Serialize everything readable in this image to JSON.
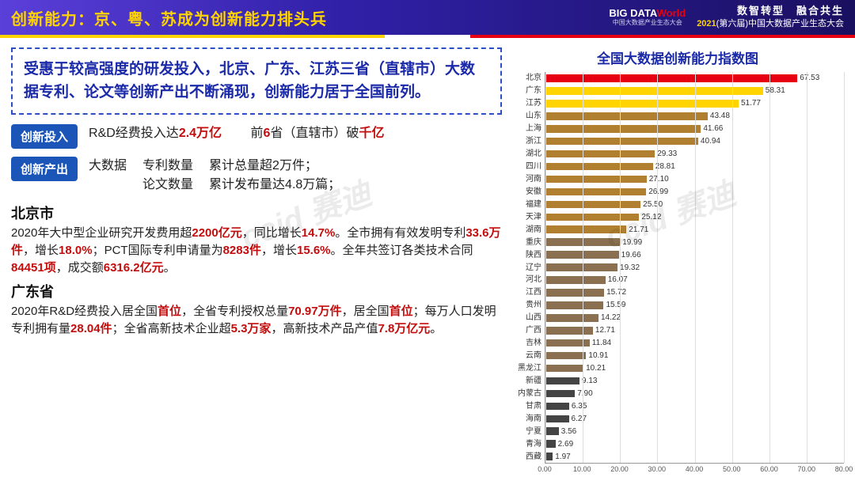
{
  "header": {
    "title": "创新能力：京、粤、苏成为创新能力排头兵",
    "logo_big": "BIG DATA",
    "logo_world": "World",
    "logo_sub": "中国大数据产业生态大会",
    "event_l1": "数智转型　融合共生",
    "event_year": "2021",
    "event_rest": "(第六届)中国大数据产业生态大会"
  },
  "summary": "受惠于较高强度的研发投入，北京、广东、江苏三省（直辖市）大数据专利、论文等创新产出不断涌现，创新能力居于全国前列。",
  "badge1": {
    "label": "创新投入",
    "t1a": "R&D经费投入达",
    "t1b": "2.4万亿",
    "t2a": "　　前",
    "t2b": "6",
    "t2c": "省（直辖市）破",
    "t2d": "千亿"
  },
  "badge2": {
    "label": "创新产出",
    "pre": "大数据",
    "r1l": "专利数量",
    "r1r": "累计总量超2万件；",
    "r2l": "论文数量",
    "r2r": "累计发布量达4.8万篇；"
  },
  "cities": [
    {
      "name": "北京市",
      "parts": [
        "2020年大中型企业研究开发费用超",
        "2200亿元",
        "，同比增长",
        "14.7%",
        "。全市拥有有效发明专利",
        "33.6万件",
        "，增长",
        "18.0%",
        "；PCT国际专利申请量为",
        "8283件",
        "，增长",
        "15.6%",
        "。全年共签订各类技术合同",
        "84451项",
        "，成交额",
        "6316.2亿元",
        "。"
      ]
    },
    {
      "name": "广东省",
      "parts": [
        "2020年R&D经费投入居全国",
        "首位",
        "，全省专利授权总量",
        "70.97万件",
        "，居全国",
        "首位",
        "；每万人口发明专利拥有量",
        "28.04件",
        "；全省高新技术企业超",
        "5.3万家",
        "，高新技术产品产值",
        "7.8万亿元",
        "。"
      ]
    }
  ],
  "chart": {
    "title": "全国大数据创新能力指数图",
    "xmax": 80,
    "xticks": [
      0,
      10,
      20,
      30,
      40,
      50,
      60,
      70,
      80
    ],
    "xtick_labels": [
      "0.00",
      "10.00",
      "20.00",
      "30.00",
      "40.00",
      "50.00",
      "60.00",
      "70.00",
      "80.00"
    ],
    "grid_color": "#dddddd",
    "axis_color": "#999999",
    "label_fontsize": 10,
    "rows": [
      {
        "label": "北京",
        "value": 67.53,
        "color": "#e60012"
      },
      {
        "label": "广东",
        "value": 58.31,
        "color": "#ffd400"
      },
      {
        "label": "江苏",
        "value": 51.77,
        "color": "#ffd400"
      },
      {
        "label": "山东",
        "value": 43.48,
        "color": "#b08030"
      },
      {
        "label": "上海",
        "value": 41.66,
        "color": "#b08030"
      },
      {
        "label": "浙江",
        "value": 40.94,
        "color": "#b08030"
      },
      {
        "label": "湖北",
        "value": 29.33,
        "color": "#b08030"
      },
      {
        "label": "四川",
        "value": 28.81,
        "color": "#b08030"
      },
      {
        "label": "河南",
        "value": 27.1,
        "color": "#b08030"
      },
      {
        "label": "安徽",
        "value": 26.99,
        "color": "#b08030"
      },
      {
        "label": "福建",
        "value": 25.5,
        "color": "#b08030"
      },
      {
        "label": "天津",
        "value": 25.12,
        "color": "#b08030"
      },
      {
        "label": "湖南",
        "value": 21.71,
        "color": "#b08030"
      },
      {
        "label": "重庆",
        "value": 19.99,
        "color": "#8a7050"
      },
      {
        "label": "陕西",
        "value": 19.66,
        "color": "#8a7050"
      },
      {
        "label": "辽宁",
        "value": 19.32,
        "color": "#8a7050"
      },
      {
        "label": "河北",
        "value": 16.07,
        "color": "#8a7050"
      },
      {
        "label": "江西",
        "value": 15.72,
        "color": "#8a7050"
      },
      {
        "label": "贵州",
        "value": 15.59,
        "color": "#8a7050"
      },
      {
        "label": "山西",
        "value": 14.22,
        "color": "#8a7050"
      },
      {
        "label": "广西",
        "value": 12.71,
        "color": "#8a7050"
      },
      {
        "label": "吉林",
        "value": 11.84,
        "color": "#8a7050"
      },
      {
        "label": "云南",
        "value": 10.91,
        "color": "#8a7050"
      },
      {
        "label": "黑龙江",
        "value": 10.21,
        "color": "#8a7050"
      },
      {
        "label": "新疆",
        "value": 9.13,
        "color": "#444444"
      },
      {
        "label": "内蒙古",
        "value": 7.9,
        "color": "#444444"
      },
      {
        "label": "甘肃",
        "value": 6.35,
        "color": "#444444"
      },
      {
        "label": "海南",
        "value": 6.27,
        "color": "#444444"
      },
      {
        "label": "宁夏",
        "value": 3.56,
        "color": "#444444"
      },
      {
        "label": "青海",
        "value": 2.69,
        "color": "#444444"
      },
      {
        "label": "西藏",
        "value": 1.97,
        "color": "#444444"
      }
    ]
  },
  "watermark": "ccid 赛迪"
}
